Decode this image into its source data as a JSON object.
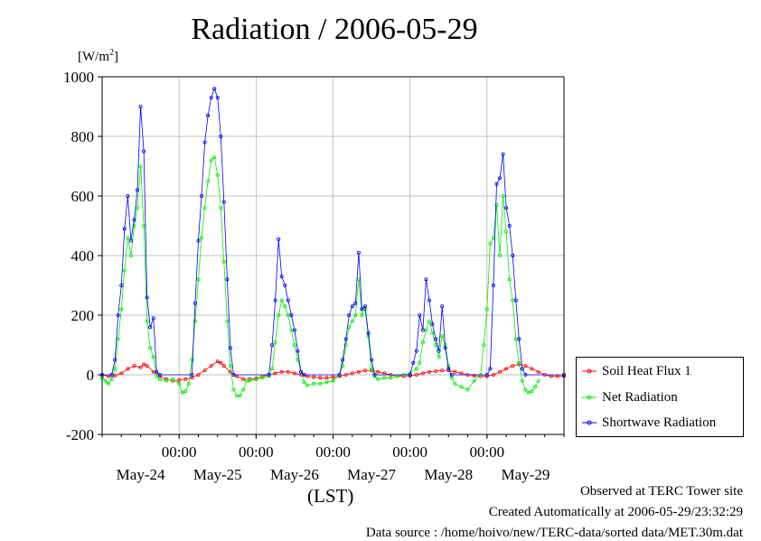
{
  "chart_data": {
    "type": "line",
    "title": "Radiation / 2006-05-29",
    "ylabel_unit_base": "[W/m",
    "ylabel_unit_sup": "2",
    "ylabel_unit_end": "]",
    "xlabel": "(LST)",
    "ylim": [
      -200,
      1000
    ],
    "yticks": [
      -200,
      0,
      200,
      400,
      600,
      800,
      1000
    ],
    "xlim": [
      0,
      144
    ],
    "time_ticks": [
      {
        "x": 24,
        "time": "00:00"
      },
      {
        "x": 48,
        "time": "00:00"
      },
      {
        "x": 72,
        "time": "00:00"
      },
      {
        "x": 96,
        "time": "00:00"
      },
      {
        "x": 120,
        "time": "00:00"
      }
    ],
    "day_labels": [
      {
        "x": 12,
        "label": "May-24"
      },
      {
        "x": 36,
        "label": "May-25"
      },
      {
        "x": 60,
        "label": "May-26"
      },
      {
        "x": 84,
        "label": "May-27"
      },
      {
        "x": 108,
        "label": "May-28"
      },
      {
        "x": 132,
        "label": "May-29"
      }
    ],
    "grid": true,
    "legend_position": "right",
    "series": [
      {
        "name": "Soil Heat Flux 1",
        "color": "#ff0000",
        "points": [
          [
            0,
            0
          ],
          [
            2,
            -5
          ],
          [
            4,
            -3
          ],
          [
            6,
            5
          ],
          [
            8,
            20
          ],
          [
            10,
            30
          ],
          [
            12,
            25
          ],
          [
            13,
            35
          ],
          [
            14,
            30
          ],
          [
            16,
            10
          ],
          [
            18,
            -5
          ],
          [
            20,
            -15
          ],
          [
            22,
            -20
          ],
          [
            24,
            -18
          ],
          [
            26,
            -15
          ],
          [
            28,
            -10
          ],
          [
            30,
            0
          ],
          [
            32,
            15
          ],
          [
            34,
            30
          ],
          [
            36,
            45
          ],
          [
            37,
            40
          ],
          [
            38,
            30
          ],
          [
            40,
            10
          ],
          [
            42,
            -5
          ],
          [
            44,
            -15
          ],
          [
            46,
            -15
          ],
          [
            48,
            -12
          ],
          [
            50,
            -5
          ],
          [
            52,
            0
          ],
          [
            54,
            5
          ],
          [
            56,
            10
          ],
          [
            58,
            10
          ],
          [
            60,
            5
          ],
          [
            62,
            0
          ],
          [
            64,
            -5
          ],
          [
            66,
            -8
          ],
          [
            68,
            -10
          ],
          [
            70,
            -10
          ],
          [
            72,
            -8
          ],
          [
            74,
            -5
          ],
          [
            76,
            0
          ],
          [
            78,
            5
          ],
          [
            80,
            10
          ],
          [
            82,
            15
          ],
          [
            84,
            15
          ],
          [
            86,
            10
          ],
          [
            88,
            5
          ],
          [
            90,
            0
          ],
          [
            92,
            -5
          ],
          [
            94,
            -5
          ],
          [
            96,
            -3
          ],
          [
            98,
            0
          ],
          [
            100,
            5
          ],
          [
            102,
            10
          ],
          [
            104,
            12
          ],
          [
            106,
            15
          ],
          [
            108,
            15
          ],
          [
            110,
            10
          ],
          [
            112,
            5
          ],
          [
            114,
            0
          ],
          [
            116,
            -3
          ],
          [
            118,
            -5
          ],
          [
            120,
            -5
          ],
          [
            122,
            0
          ],
          [
            124,
            10
          ],
          [
            126,
            20
          ],
          [
            128,
            30
          ],
          [
            130,
            35
          ],
          [
            132,
            30
          ],
          [
            134,
            20
          ],
          [
            136,
            10
          ],
          [
            138,
            0
          ],
          [
            140,
            -5
          ],
          [
            142,
            -5
          ],
          [
            144,
            -5
          ]
        ]
      },
      {
        "name": "Net Radiation",
        "color": "#00ee00",
        "points": [
          [
            0,
            -10
          ],
          [
            1,
            -20
          ],
          [
            2,
            -30
          ],
          [
            3,
            -15
          ],
          [
            4,
            20
          ],
          [
            5,
            120
          ],
          [
            6,
            220
          ],
          [
            7,
            350
          ],
          [
            8,
            460
          ],
          [
            9,
            400
          ],
          [
            10,
            500
          ],
          [
            11,
            560
          ],
          [
            12,
            700
          ],
          [
            13,
            500
          ],
          [
            14,
            180
          ],
          [
            15,
            90
          ],
          [
            16,
            60
          ],
          [
            17,
            -5
          ],
          [
            18,
            -15
          ],
          [
            20,
            -20
          ],
          [
            22,
            -15
          ],
          [
            24,
            -30
          ],
          [
            25,
            -60
          ],
          [
            26,
            -55
          ],
          [
            27,
            -30
          ],
          [
            28,
            50
          ],
          [
            29,
            180
          ],
          [
            30,
            320
          ],
          [
            31,
            460
          ],
          [
            32,
            560
          ],
          [
            33,
            650
          ],
          [
            34,
            720
          ],
          [
            35,
            730
          ],
          [
            36,
            670
          ],
          [
            37,
            560
          ],
          [
            38,
            380
          ],
          [
            39,
            180
          ],
          [
            40,
            30
          ],
          [
            41,
            -50
          ],
          [
            42,
            -70
          ],
          [
            43,
            -70
          ],
          [
            44,
            -50
          ],
          [
            45,
            -20
          ],
          [
            46,
            -20
          ],
          [
            48,
            -15
          ],
          [
            50,
            -10
          ],
          [
            52,
            -5
          ],
          [
            53,
            20
          ],
          [
            54,
            110
          ],
          [
            55,
            200
          ],
          [
            56,
            250
          ],
          [
            57,
            230
          ],
          [
            58,
            200
          ],
          [
            59,
            150
          ],
          [
            60,
            100
          ],
          [
            61,
            50
          ],
          [
            62,
            10
          ],
          [
            63,
            -25
          ],
          [
            64,
            -35
          ],
          [
            66,
            -30
          ],
          [
            68,
            -30
          ],
          [
            70,
            -25
          ],
          [
            72,
            -20
          ],
          [
            74,
            0
          ],
          [
            75,
            30
          ],
          [
            76,
            100
          ],
          [
            77,
            160
          ],
          [
            78,
            180
          ],
          [
            79,
            200
          ],
          [
            80,
            320
          ],
          [
            81,
            200
          ],
          [
            82,
            220
          ],
          [
            83,
            130
          ],
          [
            84,
            20
          ],
          [
            85,
            -5
          ],
          [
            86,
            -15
          ],
          [
            88,
            -10
          ],
          [
            90,
            -10
          ],
          [
            92,
            -5
          ],
          [
            94,
            0
          ],
          [
            96,
            5
          ],
          [
            98,
            20
          ],
          [
            99,
            40
          ],
          [
            100,
            110
          ],
          [
            101,
            150
          ],
          [
            102,
            180
          ],
          [
            103,
            140
          ],
          [
            104,
            100
          ],
          [
            105,
            60
          ],
          [
            106,
            130
          ],
          [
            107,
            100
          ],
          [
            108,
            30
          ],
          [
            109,
            -10
          ],
          [
            110,
            -30
          ],
          [
            112,
            -40
          ],
          [
            114,
            -50
          ],
          [
            116,
            -20
          ],
          [
            118,
            0
          ],
          [
            119,
            100
          ],
          [
            120,
            220
          ],
          [
            121,
            440
          ],
          [
            122,
            460
          ],
          [
            123,
            570
          ],
          [
            124,
            400
          ],
          [
            125,
            600
          ],
          [
            126,
            480
          ],
          [
            127,
            320
          ],
          [
            128,
            250
          ],
          [
            129,
            120
          ],
          [
            130,
            40
          ],
          [
            131,
            -20
          ],
          [
            132,
            -50
          ],
          [
            133,
            -60
          ],
          [
            134,
            -55
          ],
          [
            135,
            -40
          ],
          [
            136,
            -20
          ]
        ]
      },
      {
        "name": "Shortwave Radiation",
        "color": "#0000ff",
        "points": [
          [
            0,
            0
          ],
          [
            3,
            0
          ],
          [
            4,
            50
          ],
          [
            5,
            200
          ],
          [
            6,
            300
          ],
          [
            7,
            490
          ],
          [
            8,
            600
          ],
          [
            9,
            450
          ],
          [
            10,
            520
          ],
          [
            11,
            620
          ],
          [
            12,
            900
          ],
          [
            13,
            750
          ],
          [
            14,
            260
          ],
          [
            15,
            160
          ],
          [
            16,
            190
          ],
          [
            17,
            10
          ],
          [
            18,
            0
          ],
          [
            28,
            0
          ],
          [
            29,
            240
          ],
          [
            30,
            450
          ],
          [
            31,
            600
          ],
          [
            32,
            780
          ],
          [
            33,
            870
          ],
          [
            34,
            930
          ],
          [
            35,
            960
          ],
          [
            36,
            930
          ],
          [
            37,
            800
          ],
          [
            38,
            580
          ],
          [
            39,
            320
          ],
          [
            40,
            90
          ],
          [
            41,
            0
          ],
          [
            52,
            0
          ],
          [
            53,
            100
          ],
          [
            54,
            250
          ],
          [
            55,
            455
          ],
          [
            56,
            330
          ],
          [
            57,
            300
          ],
          [
            58,
            250
          ],
          [
            59,
            200
          ],
          [
            60,
            150
          ],
          [
            61,
            80
          ],
          [
            62,
            10
          ],
          [
            63,
            0
          ],
          [
            74,
            0
          ],
          [
            75,
            50
          ],
          [
            76,
            120
          ],
          [
            77,
            200
          ],
          [
            78,
            230
          ],
          [
            79,
            240
          ],
          [
            80,
            410
          ],
          [
            81,
            220
          ],
          [
            82,
            230
          ],
          [
            83,
            140
          ],
          [
            84,
            50
          ],
          [
            85,
            0
          ],
          [
            96,
            0
          ],
          [
            97,
            40
          ],
          [
            98,
            80
          ],
          [
            99,
            200
          ],
          [
            100,
            150
          ],
          [
            101,
            320
          ],
          [
            102,
            250
          ],
          [
            103,
            170
          ],
          [
            104,
            120
          ],
          [
            105,
            80
          ],
          [
            106,
            230
          ],
          [
            107,
            90
          ],
          [
            108,
            20
          ],
          [
            109,
            0
          ],
          [
            120,
            0
          ],
          [
            121,
            20
          ],
          [
            122,
            300
          ],
          [
            123,
            640
          ],
          [
            124,
            660
          ],
          [
            125,
            740
          ],
          [
            126,
            560
          ],
          [
            127,
            500
          ],
          [
            128,
            400
          ],
          [
            129,
            250
          ],
          [
            130,
            120
          ],
          [
            131,
            20
          ],
          [
            132,
            0
          ],
          [
            144,
            0
          ]
        ]
      }
    ]
  },
  "footer": {
    "observed": "Observed at TERC Tower site",
    "created": "Created Automatically at 2006-05-29/23:32:29",
    "source": "Data source : /home/hoivo/new/TERC-data/sorted  data/MET.30m.dat"
  }
}
